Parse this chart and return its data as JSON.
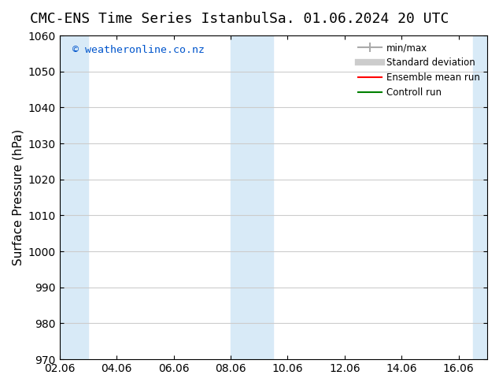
{
  "title_left": "CMC-ENS Time Series Istanbul",
  "title_right": "Sa. 01.06.2024 20 UTC",
  "ylabel": "Surface Pressure (hPa)",
  "ylim": [
    970,
    1060
  ],
  "yticks": [
    970,
    980,
    990,
    1000,
    1010,
    1020,
    1030,
    1040,
    1050,
    1060
  ],
  "xtick_labels": [
    "02.06",
    "04.06",
    "06.06",
    "08.06",
    "10.06",
    "12.06",
    "14.06",
    "16.06"
  ],
  "xtick_positions": [
    0,
    2,
    4,
    6,
    8,
    10,
    12,
    14
  ],
  "xlim": [
    0,
    15
  ],
  "shaded_bands": [
    {
      "x_start": 0,
      "x_end": 1.0
    },
    {
      "x_start": 6,
      "x_end": 7.5
    },
    {
      "x_start": 14.5,
      "x_end": 15
    }
  ],
  "shade_color": "#d8eaf7",
  "watermark_text": "© weatheronline.co.nz",
  "watermark_color": "#0055cc",
  "background_color": "#ffffff",
  "legend_items": [
    {
      "label": "min/max",
      "color": "#aaaaaa",
      "lw": 1.5,
      "ls": "-"
    },
    {
      "label": "Standard deviation",
      "color": "#cccccc",
      "lw": 5,
      "ls": "-"
    },
    {
      "label": "Ensemble mean run",
      "color": "red",
      "lw": 1.5,
      "ls": "-"
    },
    {
      "label": "Controll run",
      "color": "green",
      "lw": 1.5,
      "ls": "-"
    }
  ],
  "grid_color": "#cccccc",
  "title_fontsize": 13,
  "axis_label_fontsize": 11,
  "tick_fontsize": 10
}
